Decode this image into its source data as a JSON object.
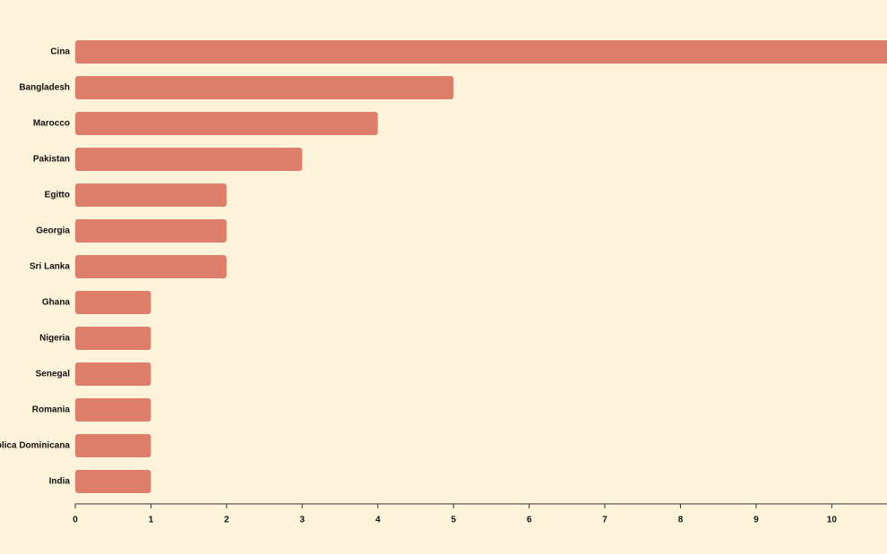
{
  "chart_data": {
    "type": "hbar",
    "categories": [
      "Cina",
      "Bangladesh",
      "Marocco",
      "Pakistan",
      "Egitto",
      "Georgia",
      "Sri Lanka",
      "Ghana",
      "Nigeria",
      "Senegal",
      "Romania",
      "Repubblica Dominicana",
      "India"
    ],
    "values": [
      11,
      5,
      4,
      3,
      2,
      2,
      2,
      1,
      1,
      1,
      1,
      1,
      1
    ],
    "color": "#de7f6b",
    "xlim": [
      0,
      10.73
    ],
    "xticks": [
      0,
      1,
      2,
      3,
      4,
      5,
      6,
      7,
      8,
      9,
      10
    ]
  }
}
